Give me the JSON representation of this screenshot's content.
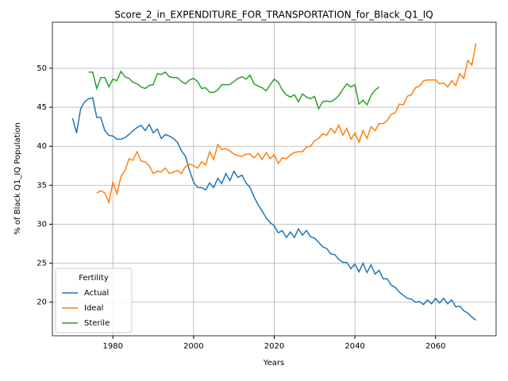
{
  "chart_data": {
    "type": "line",
    "title": "Score_2_in_EXPENDITURE_FOR_TRANSPORTATION_for_Black_Q1_IQ",
    "xlabel": "Years",
    "ylabel": "% of Black Q1_IQ Population",
    "legend_title": "Fertility",
    "legend_loc": "lower left",
    "grid": true,
    "xlim": [
      1965,
      2075
    ],
    "ylim": [
      15.7,
      55.9
    ],
    "xticks": [
      1980,
      2000,
      2020,
      2040,
      2060
    ],
    "yticks": [
      20,
      25,
      30,
      35,
      40,
      45,
      50
    ],
    "x": [
      1970,
      1971,
      1972,
      1973,
      1974,
      1975,
      1976,
      1977,
      1978,
      1979,
      1980,
      1981,
      1982,
      1983,
      1984,
      1985,
      1986,
      1987,
      1988,
      1989,
      1990,
      1991,
      1992,
      1993,
      1994,
      1995,
      1996,
      1997,
      1998,
      1999,
      2000,
      2001,
      2002,
      2003,
      2004,
      2005,
      2006,
      2007,
      2008,
      2009,
      2010,
      2011,
      2012,
      2013,
      2014,
      2015,
      2016,
      2017,
      2018,
      2019,
      2020,
      2021,
      2022,
      2023,
      2024,
      2025,
      2026,
      2027,
      2028,
      2029,
      2030,
      2031,
      2032,
      2033,
      2034,
      2035,
      2036,
      2037,
      2038,
      2039,
      2040,
      2041,
      2042,
      2043,
      2044,
      2045,
      2046,
      2047,
      2048,
      2049,
      2050,
      2051,
      2052,
      2053,
      2054,
      2055,
      2056,
      2057,
      2058,
      2059,
      2060,
      2061,
      2062,
      2063,
      2064,
      2065,
      2066,
      2067,
      2068,
      2069,
      2070
    ],
    "series": [
      {
        "name": "Actual",
        "color": "#1f77b4",
        "values": [
          43.6,
          41.7,
          44.8,
          45.7,
          46.1,
          46.2,
          43.7,
          43.7,
          42.0,
          41.4,
          41.3,
          40.9,
          40.9,
          41.1,
          41.5,
          42.0,
          42.4,
          42.7,
          42.0,
          42.8,
          41.7,
          42.2,
          41.0,
          41.5,
          41.3,
          41.0,
          40.5,
          39.4,
          38.7,
          36.9,
          35.4,
          34.7,
          34.7,
          34.4,
          35.3,
          34.7,
          35.9,
          35.2,
          36.5,
          35.6,
          36.8,
          36.0,
          36.3,
          35.3,
          34.7,
          33.5,
          32.5,
          31.7,
          30.8,
          30.2,
          29.8,
          28.9,
          29.2,
          28.3,
          29.0,
          28.3,
          29.4,
          28.6,
          29.2,
          28.4,
          28.2,
          27.7,
          27.1,
          26.9,
          26.2,
          26.1,
          25.5,
          25.1,
          25.1,
          24.3,
          24.9,
          23.9,
          25.0,
          23.8,
          24.8,
          23.6,
          24.1,
          23.0,
          23.0,
          22.2,
          21.9,
          21.3,
          20.9,
          20.5,
          20.4,
          20.0,
          20.1,
          19.7,
          20.3,
          19.8,
          20.5,
          19.9,
          20.5,
          19.8,
          20.3,
          19.4,
          19.5,
          18.9,
          18.6,
          18.1,
          17.7
        ]
      },
      {
        "name": "Ideal",
        "color": "#ff7f0e",
        "values": [
          null,
          null,
          null,
          null,
          null,
          null,
          34.0,
          34.3,
          34.0,
          32.8,
          35.4,
          33.9,
          36.1,
          36.9,
          38.4,
          38.2,
          39.3,
          38.1,
          38.0,
          37.5,
          36.5,
          36.8,
          36.7,
          37.2,
          36.5,
          36.7,
          36.9,
          36.5,
          37.4,
          37.7,
          37.5,
          37.2,
          38.0,
          37.6,
          39.3,
          38.3,
          40.2,
          39.6,
          39.7,
          39.4,
          39.0,
          38.8,
          38.7,
          39.0,
          39.0,
          38.5,
          39.1,
          38.3,
          39.2,
          38.4,
          38.9,
          37.8,
          38.5,
          38.4,
          38.9,
          39.2,
          39.3,
          39.3,
          39.9,
          40.0,
          40.7,
          41.0,
          41.6,
          41.4,
          42.3,
          41.7,
          42.7,
          41.4,
          42.3,
          40.9,
          41.7,
          40.5,
          42.0,
          41.0,
          42.5,
          42.0,
          42.9,
          42.9,
          43.3,
          44.1,
          44.3,
          45.4,
          45.3,
          46.4,
          46.6,
          47.5,
          47.7,
          48.4,
          48.5,
          48.5,
          48.5,
          48.0,
          48.1,
          47.6,
          48.4,
          47.8,
          49.3,
          48.7,
          51.0,
          50.4,
          53.2
        ]
      },
      {
        "name": "Sterile",
        "color": "#2ca02c",
        "values": [
          null,
          null,
          null,
          null,
          49.5,
          49.5,
          47.4,
          48.8,
          48.8,
          47.6,
          48.6,
          48.4,
          49.6,
          48.9,
          48.7,
          48.2,
          48.0,
          47.6,
          47.4,
          47.8,
          47.9,
          49.3,
          49.2,
          49.5,
          48.9,
          48.8,
          48.8,
          48.3,
          48.0,
          48.5,
          48.7,
          48.3,
          47.4,
          47.5,
          46.9,
          46.9,
          47.2,
          47.9,
          47.9,
          47.9,
          48.3,
          48.7,
          48.9,
          48.6,
          49.1,
          48.0,
          47.7,
          47.5,
          47.1,
          47.9,
          48.6,
          48.2,
          47.2,
          46.6,
          46.3,
          46.6,
          45.7,
          46.7,
          46.3,
          46.1,
          46.4,
          44.8,
          45.7,
          45.8,
          45.7,
          46.0,
          46.5,
          47.3,
          48.0,
          47.6,
          47.9,
          45.4,
          45.9,
          45.3,
          46.5,
          47.2,
          47.6,
          null,
          null,
          null,
          null,
          null,
          null,
          null,
          null,
          null,
          null,
          null,
          null,
          null,
          null,
          null,
          null,
          null,
          null,
          null,
          null,
          null,
          null,
          null,
          null
        ]
      }
    ]
  }
}
